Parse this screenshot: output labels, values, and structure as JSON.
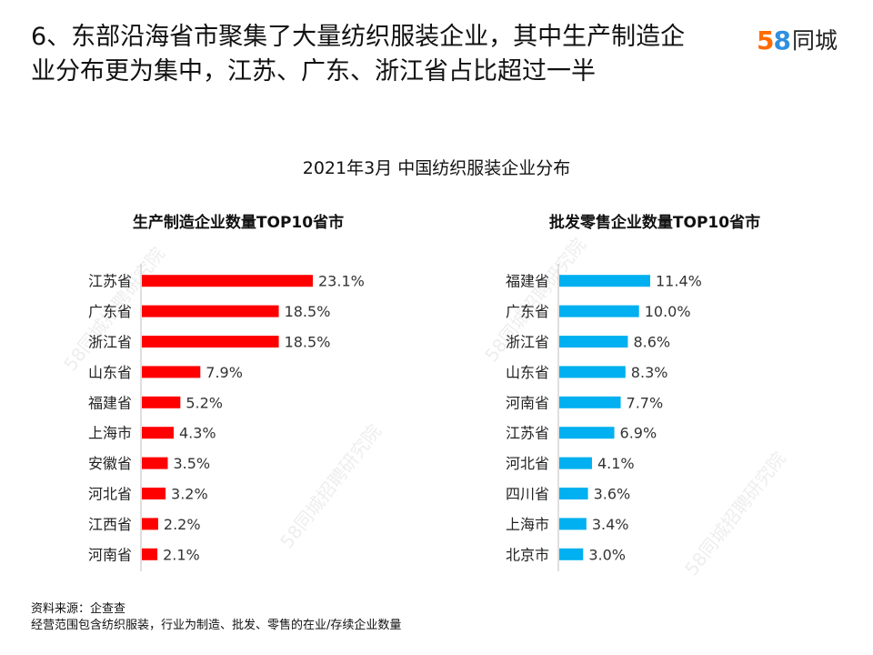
{
  "headline": {
    "line1": "6、东部沿海省市聚集了大量纺织服装企业，其中生产制造企",
    "line2": "业分布更为集中，江苏、广东、浙江省占比超过一半"
  },
  "logo": {
    "digit5": "5",
    "digit8": "8",
    "text": "同城"
  },
  "main_title": "2021年3月  中国纺织服装企业分布",
  "watermark_text": "58同城招聘研究院",
  "footer": {
    "line1": "资料来源：企查查",
    "line2": "经营范围包含纺织服装，行业为制造、批发、零售的在业/存续企业数量"
  },
  "colors": {
    "manufacturing": "#ff0000",
    "wholesale": "#00b0f0",
    "axis": "#bfbfbf"
  },
  "chart_data": [
    {
      "type": "bar",
      "orientation": "horizontal",
      "title": "生产制造企业数量TOP10省市",
      "categories": [
        "江苏省",
        "广东省",
        "浙江省",
        "山东省",
        "福建省",
        "上海市",
        "安徽省",
        "河北省",
        "江西省",
        "河南省"
      ],
      "values": [
        23.1,
        18.5,
        18.5,
        7.9,
        5.2,
        4.3,
        3.5,
        3.2,
        2.2,
        2.1
      ],
      "value_labels": [
        "23.1%",
        "18.5%",
        "18.5%",
        "7.9%",
        "5.2%",
        "4.3%",
        "3.5%",
        "3.2%",
        "2.2%",
        "2.1%"
      ],
      "unit": "%",
      "color": "#ff0000",
      "xlim": [
        0,
        23.1
      ],
      "grid": false
    },
    {
      "type": "bar",
      "orientation": "horizontal",
      "title": "批发零售企业数量TOP10省市",
      "categories": [
        "福建省",
        "广东省",
        "浙江省",
        "山东省",
        "河南省",
        "江苏省",
        "河北省",
        "四川省",
        "上海市",
        "北京市"
      ],
      "values": [
        11.4,
        10.0,
        8.6,
        8.3,
        7.7,
        6.9,
        4.1,
        3.6,
        3.4,
        3.0
      ],
      "value_labels": [
        "11.4%",
        "10.0%",
        "8.6%",
        "8.3%",
        "7.7%",
        "6.9%",
        "4.1%",
        "3.6%",
        "3.4%",
        "3.0%"
      ],
      "unit": "%",
      "color": "#00b0f0",
      "xlim": [
        0,
        11.4
      ],
      "grid": false
    }
  ]
}
